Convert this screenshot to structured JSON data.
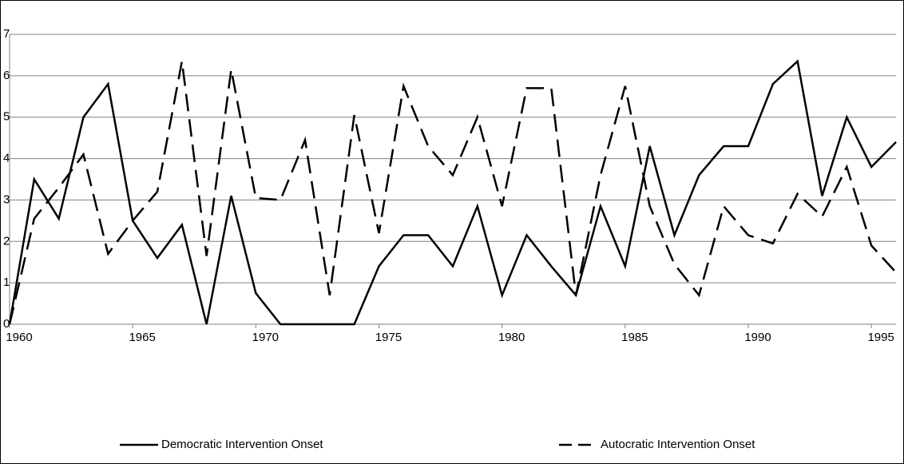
{
  "chart_data": {
    "type": "line",
    "x": [
      1960,
      1961,
      1962,
      1963,
      1964,
      1965,
      1966,
      1967,
      1968,
      1969,
      1970,
      1971,
      1972,
      1973,
      1974,
      1975,
      1976,
      1977,
      1978,
      1979,
      1980,
      1981,
      1982,
      1983,
      1984,
      1985,
      1986,
      1987,
      1988,
      1989,
      1990,
      1991,
      1992,
      1993,
      1994,
      1995,
      1996
    ],
    "series": [
      {
        "name": "Democratic Intervention Onset",
        "color": "#000000",
        "dash": "solid",
        "values": [
          0,
          3.5,
          2.55,
          5.0,
          5.8,
          2.5,
          1.6,
          2.4,
          0,
          3.1,
          0.75,
          0,
          0,
          0,
          0,
          1.4,
          2.15,
          2.15,
          1.4,
          2.85,
          0.7,
          2.15,
          1.4,
          0.7,
          2.85,
          1.4,
          4.3,
          2.15,
          3.6,
          4.3,
          4.3,
          5.8,
          6.35,
          3.1,
          5.0,
          3.8,
          4.4
        ]
      },
      {
        "name": "Autocratic Intervention Onset",
        "color": "#000000",
        "dash": "dashed",
        "values": [
          0,
          2.55,
          3.3,
          4.1,
          1.7,
          2.5,
          3.2,
          6.35,
          1.65,
          6.15,
          3.05,
          3.0,
          4.45,
          0.7,
          5.05,
          2.2,
          5.75,
          4.3,
          3.6,
          5.0,
          2.85,
          5.7,
          5.7,
          0.7,
          3.6,
          5.75,
          2.85,
          1.45,
          0.7,
          2.85,
          2.15,
          1.95,
          3.15,
          2.6,
          3.8,
          1.9,
          1.25
        ]
      }
    ],
    "xlim": [
      1960,
      1996
    ],
    "xticks": [
      1960,
      1965,
      1970,
      1975,
      1980,
      1985,
      1990,
      1995
    ],
    "ylim": [
      0,
      7
    ],
    "yticks": [
      0,
      1,
      2,
      3,
      4,
      5,
      6,
      7
    ],
    "grid": true,
    "legend": "bottom"
  }
}
